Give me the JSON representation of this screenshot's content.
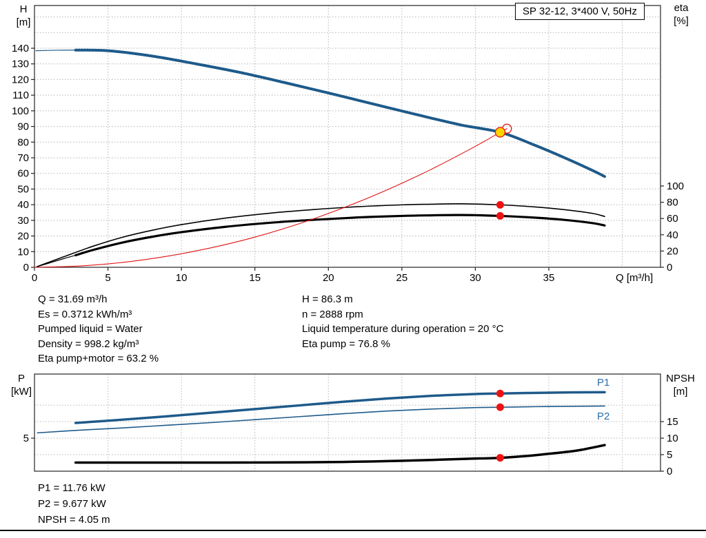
{
  "title_box": "SP 32-12, 3*400 V, 50Hz",
  "colors": {
    "curve_blue": "#1e5a8a",
    "curve_black": "#000000",
    "curve_red": "#e01010",
    "marker_red": "#ee1111",
    "marker_yellow": "#ffd400",
    "series_label_blue": "#2a6da8",
    "grid": "#b4b4b4"
  },
  "axis": {
    "h": "H",
    "h_unit": "[m]",
    "eta": "eta",
    "eta_unit": "[%]",
    "q": "Q [m³/h]",
    "p": "P",
    "p_unit": "[kW]",
    "npsh": "NPSH",
    "npsh_unit": "[m]"
  },
  "series_labels": {
    "p1": "P1",
    "p2": "P2"
  },
  "info": {
    "left": [
      "Q = 31.69 m³/h",
      "Es = 0.3712 kWh/m³",
      "Pumped liquid = Water",
      "Density = 998.2 kg/m³",
      "Eta pump+motor = 63.2 %"
    ],
    "right": [
      "H = 86.3 m",
      "n = 2888 rpm",
      "Liquid temperature during operation = 20 °C",
      "Eta pump = 76.8 %"
    ]
  },
  "results": [
    "P1 = 11.76 kW",
    "P2 = 9.677 kW",
    "NPSH = 4.05 m"
  ],
  "chart_data": [
    {
      "type": "line",
      "title": "SP 32-12, 3*400 V, 50Hz",
      "xlabel": "Q [m³/h]",
      "ylabel": "H [m]",
      "y2label": "eta [%]",
      "xlim": [
        0,
        42.6
      ],
      "ylim": [
        0,
        167.3
      ],
      "y2lim": [
        0,
        322
      ],
      "x_ticks": [
        0,
        5,
        10,
        15,
        20,
        25,
        30,
        35
      ],
      "y_ticks": [
        0,
        10,
        20,
        30,
        40,
        50,
        60,
        70,
        80,
        90,
        100,
        110,
        120,
        130,
        140
      ],
      "y2_ticks": [
        0,
        20,
        40,
        60,
        80,
        100
      ],
      "grid_x": [
        5,
        10,
        15,
        20,
        25,
        30,
        35,
        40
      ],
      "grid_y": [
        10,
        20,
        30,
        40,
        50,
        60,
        70,
        80,
        90,
        100,
        110,
        120,
        130,
        140,
        150,
        160
      ],
      "grid_y2": [],
      "series": [
        {
          "name": "head-curve-lead",
          "axis": "y",
          "color": "#1e5a8a",
          "width": 1.2,
          "points": [
            [
              0.1,
              138.4
            ],
            [
              1.5,
              138.7
            ],
            [
              2.8,
              138.8
            ]
          ]
        },
        {
          "name": "head-curve",
          "axis": "y",
          "color": "#1e5a8a",
          "width": 4,
          "points": [
            [
              2.8,
              138.8
            ],
            [
              5,
              138.4
            ],
            [
              8,
              135.0
            ],
            [
              11,
              130.0
            ],
            [
              14,
              124.5
            ],
            [
              17,
              118.1
            ],
            [
              20,
              111.4
            ],
            [
              23,
              104.5
            ],
            [
              26,
              97.6
            ],
            [
              29,
              91.0
            ],
            [
              31.69,
              86.3
            ],
            [
              34,
              78.2
            ],
            [
              36,
              70.3
            ],
            [
              38,
              61.8
            ],
            [
              38.8,
              58.0
            ]
          ]
        },
        {
          "name": "eta-pump-curve",
          "axis": "y2",
          "color": "#000000",
          "width": 1.6,
          "points": [
            [
              0.2,
              1
            ],
            [
              2,
              13
            ],
            [
              4,
              26
            ],
            [
              6,
              37
            ],
            [
              8,
              45.5
            ],
            [
              10,
              52.5
            ],
            [
              13,
              60.5
            ],
            [
              16,
              66.5
            ],
            [
              19,
              71
            ],
            [
              22,
              74.5
            ],
            [
              25,
              76.8
            ],
            [
              27,
              77.6
            ],
            [
              29,
              78.1
            ],
            [
              31.69,
              76.8
            ],
            [
              34,
              74.3
            ],
            [
              36,
              71
            ],
            [
              38,
              66.2
            ],
            [
              38.8,
              62.5
            ]
          ]
        },
        {
          "name": "eta-pump-motor-curve-lead",
          "axis": "y2",
          "color": "#000000",
          "width": 1.2,
          "points": [
            [
              0.15,
              0.6
            ],
            [
              1,
              5.2
            ],
            [
              2,
              10.7
            ],
            [
              2.8,
              14.8
            ]
          ]
        },
        {
          "name": "eta-pump-motor-curve",
          "axis": "y2",
          "color": "#000000",
          "width": 3.2,
          "points": [
            [
              2.8,
              14.8
            ],
            [
              4,
              21.4
            ],
            [
              6,
              30.5
            ],
            [
              8,
              37.5
            ],
            [
              10,
              43.2
            ],
            [
              13,
              49.8
            ],
            [
              16,
              54.7
            ],
            [
              19,
              58.4
            ],
            [
              22,
              61.3
            ],
            [
              25,
              63.2
            ],
            [
              27,
              63.9
            ],
            [
              29,
              64.3
            ],
            [
              31.69,
              63.2
            ],
            [
              34,
              61.1
            ],
            [
              36,
              58.4
            ],
            [
              38,
              54.3
            ],
            [
              38.8,
              51.4
            ]
          ]
        },
        {
          "name": "system-curve",
          "axis": "y",
          "color": "#e01010",
          "width": 1.1,
          "points": [
            [
              0,
              0
            ],
            [
              3,
              0.8
            ],
            [
              6,
              3.1
            ],
            [
              9,
              7.0
            ],
            [
              12,
              12.4
            ],
            [
              15,
              19.3
            ],
            [
              18,
              27.8
            ],
            [
              21,
              37.9
            ],
            [
              24,
              49.5
            ],
            [
              27,
              62.6
            ],
            [
              30,
              77.3
            ],
            [
              31.69,
              86.3
            ],
            [
              32.15,
              88.6
            ]
          ]
        }
      ],
      "markers": [
        {
          "name": "intersection-marker",
          "axis": "y",
          "x": 32.15,
          "y": 88.6,
          "r": 6.5,
          "fill": "none",
          "stroke": "#e01010",
          "sw": 1.3
        },
        {
          "name": "operating-point-marker",
          "axis": "y",
          "x": 31.69,
          "y": 86.3,
          "r": 7,
          "fill": "#ffd400",
          "stroke": "#e01010",
          "sw": 1.3
        },
        {
          "name": "eta-pump-point",
          "axis": "y2",
          "x": 31.69,
          "y": 76.8,
          "r": 5.5,
          "fill": "#ee1111",
          "stroke": "none",
          "sw": 0
        },
        {
          "name": "eta-pump-motor-point",
          "axis": "y2",
          "x": 31.69,
          "y": 63.2,
          "r": 5.5,
          "fill": "#ee1111",
          "stroke": "none",
          "sw": 0
        }
      ]
    },
    {
      "type": "line",
      "title": "",
      "xlabel": "Q [m³/h]",
      "ylabel": "P [kW]",
      "y2label": "NPSH [m]",
      "xlim": [
        0,
        42.6
      ],
      "ylim": [
        0,
        14.7
      ],
      "y2lim": [
        0,
        29.4
      ],
      "x_ticks": [],
      "y_ticks": [
        5
      ],
      "y2_ticks": [
        0,
        5,
        10,
        15
      ],
      "grid_x": [
        5,
        10,
        15,
        20,
        25,
        30,
        35,
        40
      ],
      "grid_y": [
        5,
        10
      ],
      "grid_y2": [
        5,
        10,
        15
      ],
      "series": [
        {
          "name": "p1-curve",
          "axis": "y",
          "color": "#1e5a8a",
          "width": 3.5,
          "points": [
            [
              2.8,
              7.3
            ],
            [
              6,
              7.8
            ],
            [
              9,
              8.3
            ],
            [
              12,
              8.85
            ],
            [
              15,
              9.4
            ],
            [
              18,
              9.95
            ],
            [
              21,
              10.5
            ],
            [
              24,
              11.0
            ],
            [
              27,
              11.4
            ],
            [
              30,
              11.68
            ],
            [
              31.69,
              11.76
            ],
            [
              34,
              11.85
            ],
            [
              36.5,
              11.92
            ],
            [
              38.8,
              11.95
            ]
          ]
        },
        {
          "name": "p2-curve",
          "axis": "y",
          "color": "#1e5a8a",
          "width": 1.6,
          "points": [
            [
              0.2,
              5.8
            ],
            [
              3,
              6.2
            ],
            [
              6,
              6.55
            ],
            [
              9,
              6.95
            ],
            [
              12,
              7.35
            ],
            [
              15,
              7.8
            ],
            [
              18,
              8.25
            ],
            [
              21,
              8.7
            ],
            [
              24,
              9.1
            ],
            [
              27,
              9.4
            ],
            [
              30,
              9.62
            ],
            [
              31.69,
              9.68
            ],
            [
              34,
              9.76
            ],
            [
              36.5,
              9.82
            ],
            [
              38.8,
              9.86
            ]
          ]
        },
        {
          "name": "npsh-curve",
          "axis": "y2",
          "color": "#000000",
          "width": 3.5,
          "points": [
            [
              2.8,
              2.6
            ],
            [
              8,
              2.6
            ],
            [
              13,
              2.6
            ],
            [
              17,
              2.65
            ],
            [
              21,
              2.8
            ],
            [
              24,
              3.05
            ],
            [
              27,
              3.4
            ],
            [
              29.5,
              3.75
            ],
            [
              31.69,
              4.05
            ],
            [
              33.5,
              4.6
            ],
            [
              35.5,
              5.5
            ],
            [
              37,
              6.3
            ],
            [
              38.8,
              7.9
            ]
          ]
        }
      ],
      "markers": [
        {
          "name": "p1-point",
          "axis": "y",
          "x": 31.69,
          "y": 11.76,
          "r": 5.5,
          "fill": "#ee1111",
          "stroke": "none",
          "sw": 0
        },
        {
          "name": "p2-point",
          "axis": "y",
          "x": 31.69,
          "y": 9.68,
          "r": 5.5,
          "fill": "#ee1111",
          "stroke": "none",
          "sw": 0
        },
        {
          "name": "npsh-point",
          "axis": "y2",
          "x": 31.69,
          "y": 4.05,
          "r": 5.5,
          "fill": "#ee1111",
          "stroke": "none",
          "sw": 0
        }
      ]
    }
  ]
}
